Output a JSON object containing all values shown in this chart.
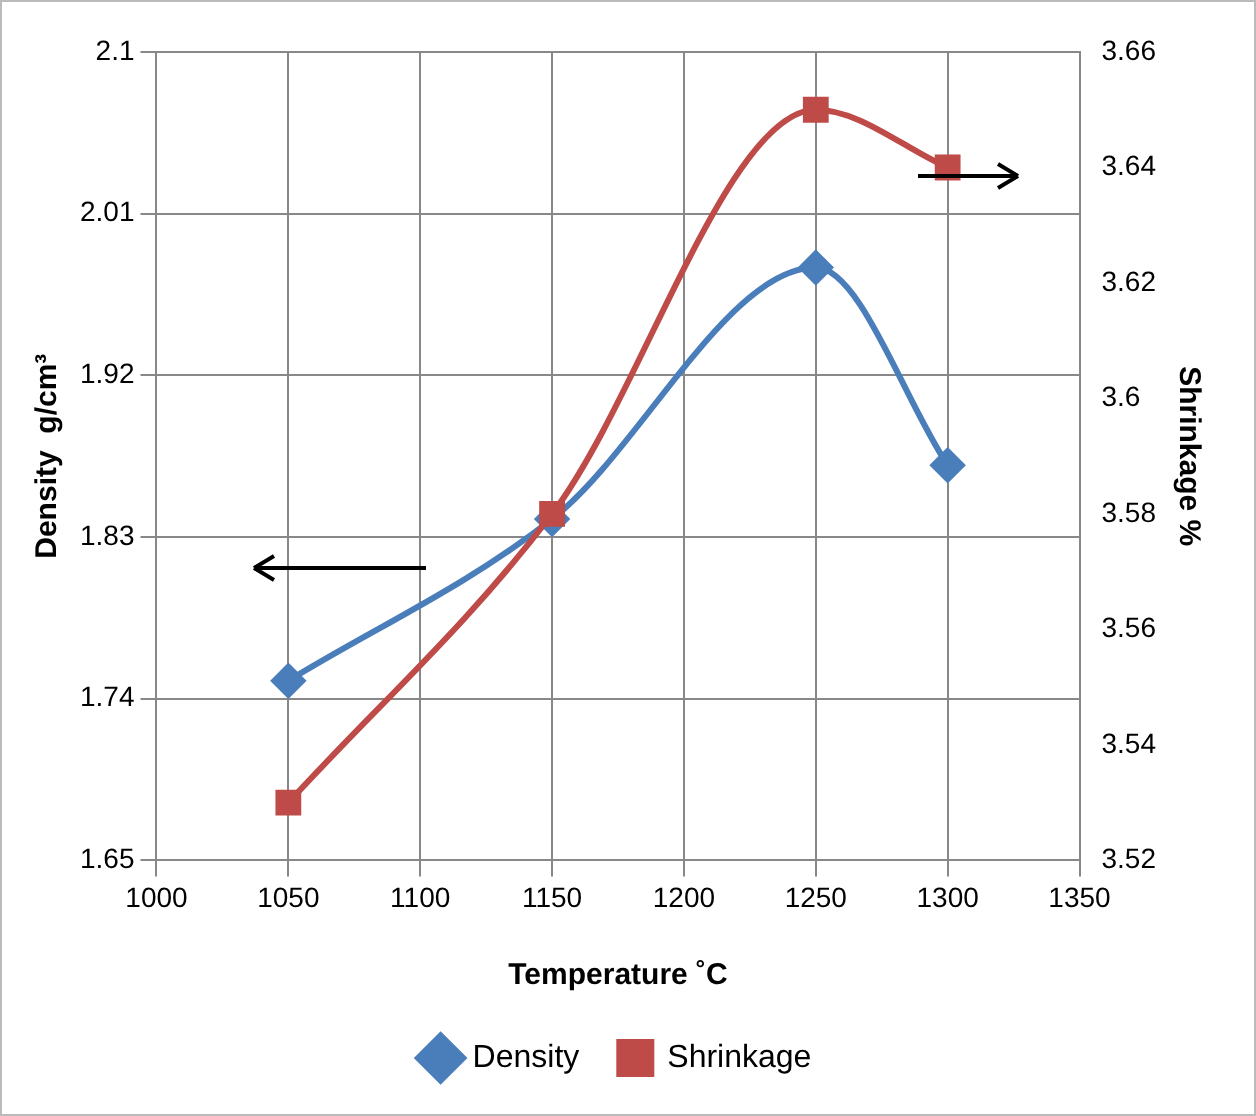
{
  "chart_data": {
    "type": "line",
    "xlabel": "Temperature ˚C",
    "ylabel": "Density  g/cm³",
    "y2label": "Shrinkage %",
    "x": [
      1050,
      1150,
      1250,
      1300
    ],
    "series": [
      {
        "name": "Density",
        "color": "#4a7ebb",
        "values": [
          1.75,
          1.84,
          1.98,
          1.87
        ],
        "marker": "diamond"
      },
      {
        "name": "Shrinkage",
        "color": "#be4b48",
        "values": [
          3.53,
          3.58,
          3.65,
          3.64
        ],
        "marker": "square",
        "axis": "y2"
      }
    ],
    "xlim": [
      1000,
      1350
    ],
    "xticks": [
      1000,
      1050,
      1100,
      1150,
      1200,
      1250,
      1300,
      1350
    ],
    "ylim": [
      1.65,
      2.1
    ],
    "yticks": [
      1.65,
      1.74,
      1.83,
      1.92,
      2.01,
      2.1
    ],
    "y2lim": [
      3.52,
      3.66
    ],
    "y2ticks": [
      3.52,
      3.54,
      3.56,
      3.58,
      3.6,
      3.62,
      3.64,
      3.66
    ],
    "grid": true,
    "legend": "bottom"
  }
}
